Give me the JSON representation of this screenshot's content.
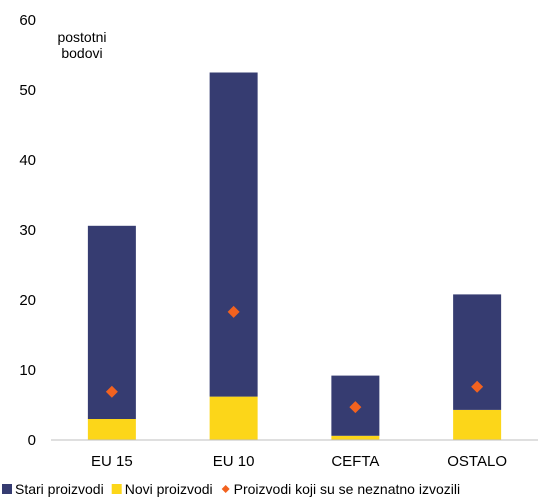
{
  "chart_data": {
    "type": "bar",
    "stacked": true,
    "unit_label": [
      "postotni",
      "bodovi"
    ],
    "categories": [
      "EU 15",
      "EU 10",
      "CEFTA",
      "OSTALO"
    ],
    "ylim": [
      0,
      60
    ],
    "yticks": [
      0,
      10,
      20,
      30,
      40,
      50,
      60
    ],
    "grid": false,
    "legend_position": "bottom",
    "series": [
      {
        "name": "Stari proizvodi",
        "kind": "bar",
        "color": "#363c71",
        "values": [
          27.6,
          46.3,
          8.6,
          16.5
        ]
      },
      {
        "name": "Novi proizvodi",
        "kind": "bar",
        "color": "#fcd619",
        "values": [
          3.0,
          6.2,
          0.6,
          4.3
        ]
      },
      {
        "name": "Proizvodi koji su se neznatno izvozili",
        "kind": "marker",
        "color": "#f2621f",
        "values": [
          6.9,
          18.3,
          4.7,
          7.6
        ]
      }
    ]
  }
}
